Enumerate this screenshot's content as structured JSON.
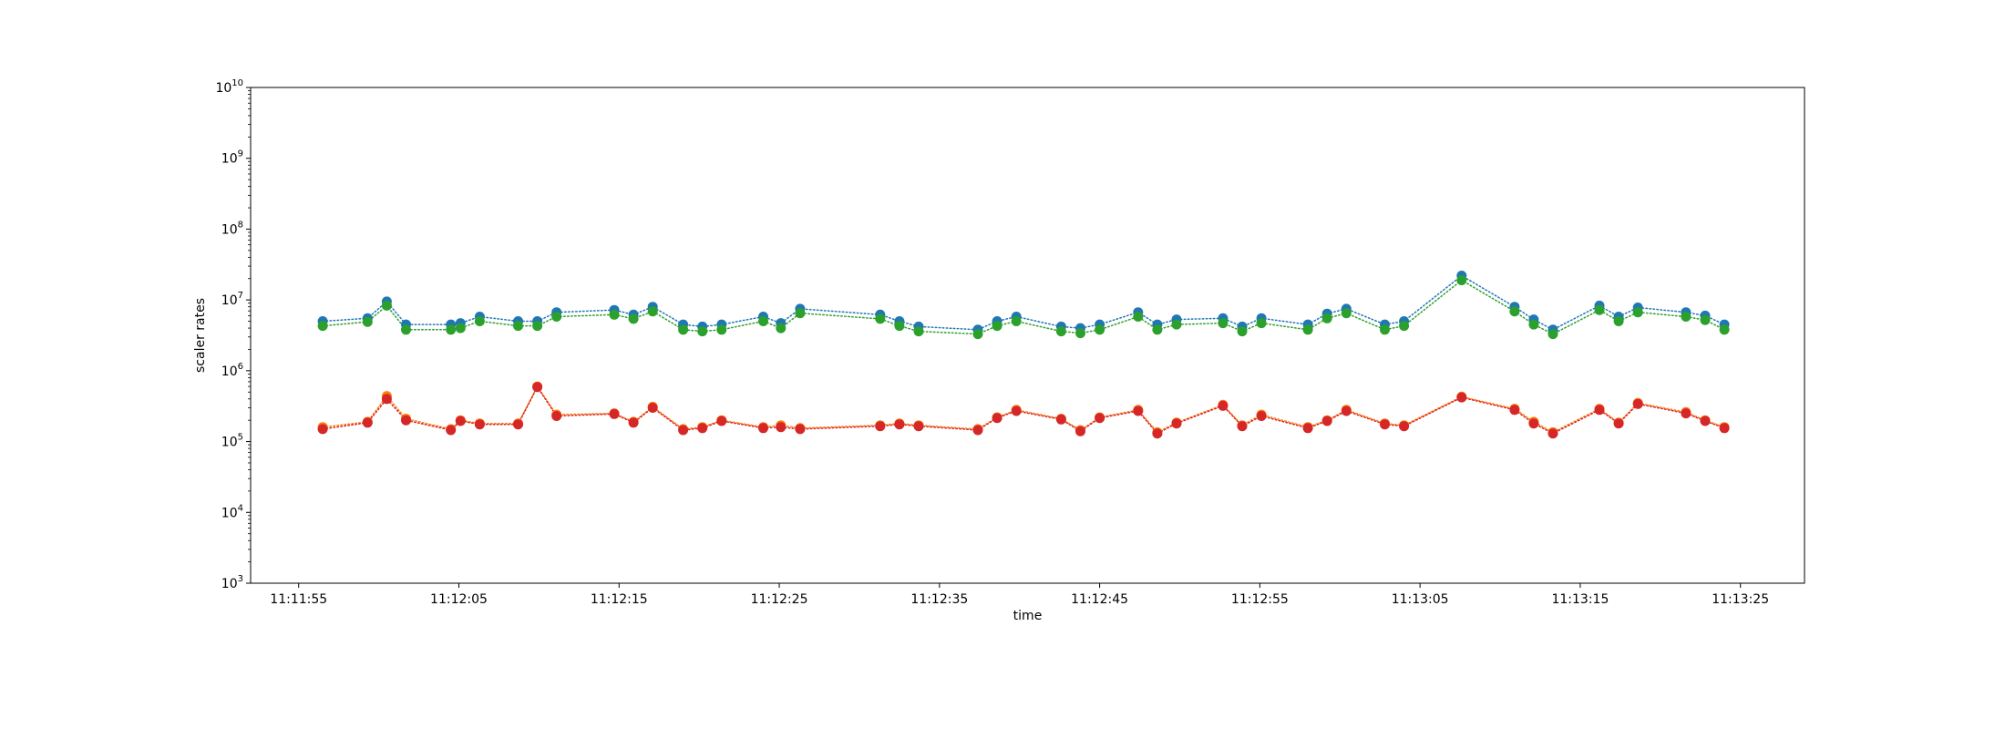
{
  "chart_data": {
    "type": "line",
    "title": "",
    "xlabel": "time",
    "ylabel": "scaler rates",
    "yscale": "log",
    "ylim": [
      1000,
      10000000000
    ],
    "xlim": [
      "11:11:52",
      "11:13:29"
    ],
    "grid": false,
    "legend": "none",
    "x_ticks": [
      "11:11:55",
      "11:12:05",
      "11:12:15",
      "11:12:25",
      "11:12:35",
      "11:12:45",
      "11:12:55",
      "11:13:05",
      "11:13:15",
      "11:13:25"
    ],
    "y_ticks": [
      {
        "value": 1000,
        "base": "10",
        "exp": "3"
      },
      {
        "value": 10000,
        "base": "10",
        "exp": "4"
      },
      {
        "value": 100000,
        "base": "10",
        "exp": "5"
      },
      {
        "value": 1000000,
        "base": "10",
        "exp": "6"
      },
      {
        "value": 10000000,
        "base": "10",
        "exp": "7"
      },
      {
        "value": 100000000,
        "base": "10",
        "exp": "8"
      },
      {
        "value": 1000000000,
        "base": "10",
        "exp": "9"
      },
      {
        "value": 10000000000,
        "base": "10",
        "exp": "10"
      }
    ],
    "x": [
      "11:11:56.5",
      "11:11:59.3",
      "11:12:00.5",
      "11:12:01.7",
      "11:12:04.5",
      "11:12:05.1",
      "11:12:06.3",
      "11:12:08.7",
      "11:12:09.9",
      "11:12:11.1",
      "11:12:14.7",
      "11:12:15.9",
      "11:12:17.1",
      "11:12:19.0",
      "11:12:20.2",
      "11:12:21.4",
      "11:12:24.0",
      "11:12:25.1",
      "11:12:26.3",
      "11:12:31.3",
      "11:12:32.5",
      "11:12:33.7",
      "11:12:37.4",
      "11:12:38.6",
      "11:12:39.8",
      "11:12:42.6",
      "11:12:43.8",
      "11:12:45.0",
      "11:12:47.4",
      "11:12:48.6",
      "11:12:49.8",
      "11:12:52.7",
      "11:12:53.9",
      "11:12:55.1",
      "11:12:58.0",
      "11:12:59.2",
      "11:13:00.4",
      "11:13:02.8",
      "11:13:04.0",
      "11:13:07.6",
      "11:13:10.9",
      "11:13:12.1",
      "11:13:13.3",
      "11:13:16.2",
      "11:13:17.4",
      "11:13:18.6",
      "11:13:21.6",
      "11:13:22.8",
      "11:13:24.0"
    ],
    "series": [
      {
        "color": "#1f77b4",
        "linestyle": "dotted",
        "values": [
          5000000,
          5500000,
          9500000,
          4500000,
          4500000,
          4700000,
          5800000,
          5000000,
          5000000,
          6700000,
          7200000,
          6200000,
          8000000,
          4500000,
          4200000,
          4500000,
          5800000,
          4700000,
          7500000,
          6200000,
          5000000,
          4200000,
          3800000,
          5000000,
          5800000,
          4200000,
          4000000,
          4500000,
          6700000,
          4500000,
          5300000,
          5500000,
          4200000,
          5500000,
          4500000,
          6400000,
          7500000,
          4500000,
          5000000,
          22000000,
          8000000,
          5300000,
          3800000,
          8300000,
          5800000,
          7800000,
          6700000,
          6000000,
          4500000
        ]
      },
      {
        "color": "#2ca02c",
        "linestyle": "dotted",
        "values": [
          4300000,
          4900000,
          8300000,
          3800000,
          3800000,
          4000000,
          5000000,
          4300000,
          4300000,
          5800000,
          6200000,
          5400000,
          6900000,
          3800000,
          3600000,
          3800000,
          5000000,
          4000000,
          6500000,
          5400000,
          4300000,
          3600000,
          3300000,
          4300000,
          5000000,
          3600000,
          3400000,
          3800000,
          5800000,
          3800000,
          4500000,
          4700000,
          3600000,
          4700000,
          3800000,
          5500000,
          6500000,
          3800000,
          4300000,
          19000000,
          6900000,
          4500000,
          3300000,
          7200000,
          5000000,
          6700000,
          5800000,
          5200000,
          3800000
        ]
      },
      {
        "color": "#ff7f0e",
        "linestyle": "dotted",
        "values": [
          160000,
          190000,
          440000,
          210000,
          150000,
          200000,
          180000,
          180000,
          600000,
          240000,
          250000,
          190000,
          310000,
          150000,
          160000,
          200000,
          160000,
          170000,
          155000,
          170000,
          180000,
          170000,
          150000,
          220000,
          280000,
          210000,
          145000,
          220000,
          280000,
          135000,
          185000,
          330000,
          170000,
          240000,
          160000,
          200000,
          280000,
          180000,
          170000,
          430000,
          290000,
          190000,
          135000,
          290000,
          185000,
          350000,
          260000,
          200000,
          160000
        ]
      },
      {
        "color": "#d62728",
        "linestyle": "dotted",
        "values": [
          150000,
          185000,
          400000,
          200000,
          145000,
          195000,
          175000,
          175000,
          590000,
          230000,
          245000,
          185000,
          300000,
          145000,
          155000,
          195000,
          155000,
          160000,
          150000,
          165000,
          175000,
          165000,
          145000,
          215000,
          270000,
          205000,
          140000,
          215000,
          270000,
          130000,
          180000,
          320000,
          165000,
          230000,
          155000,
          195000,
          270000,
          175000,
          165000,
          420000,
          280000,
          180000,
          130000,
          280000,
          180000,
          340000,
          250000,
          195000,
          155000
        ]
      }
    ]
  }
}
